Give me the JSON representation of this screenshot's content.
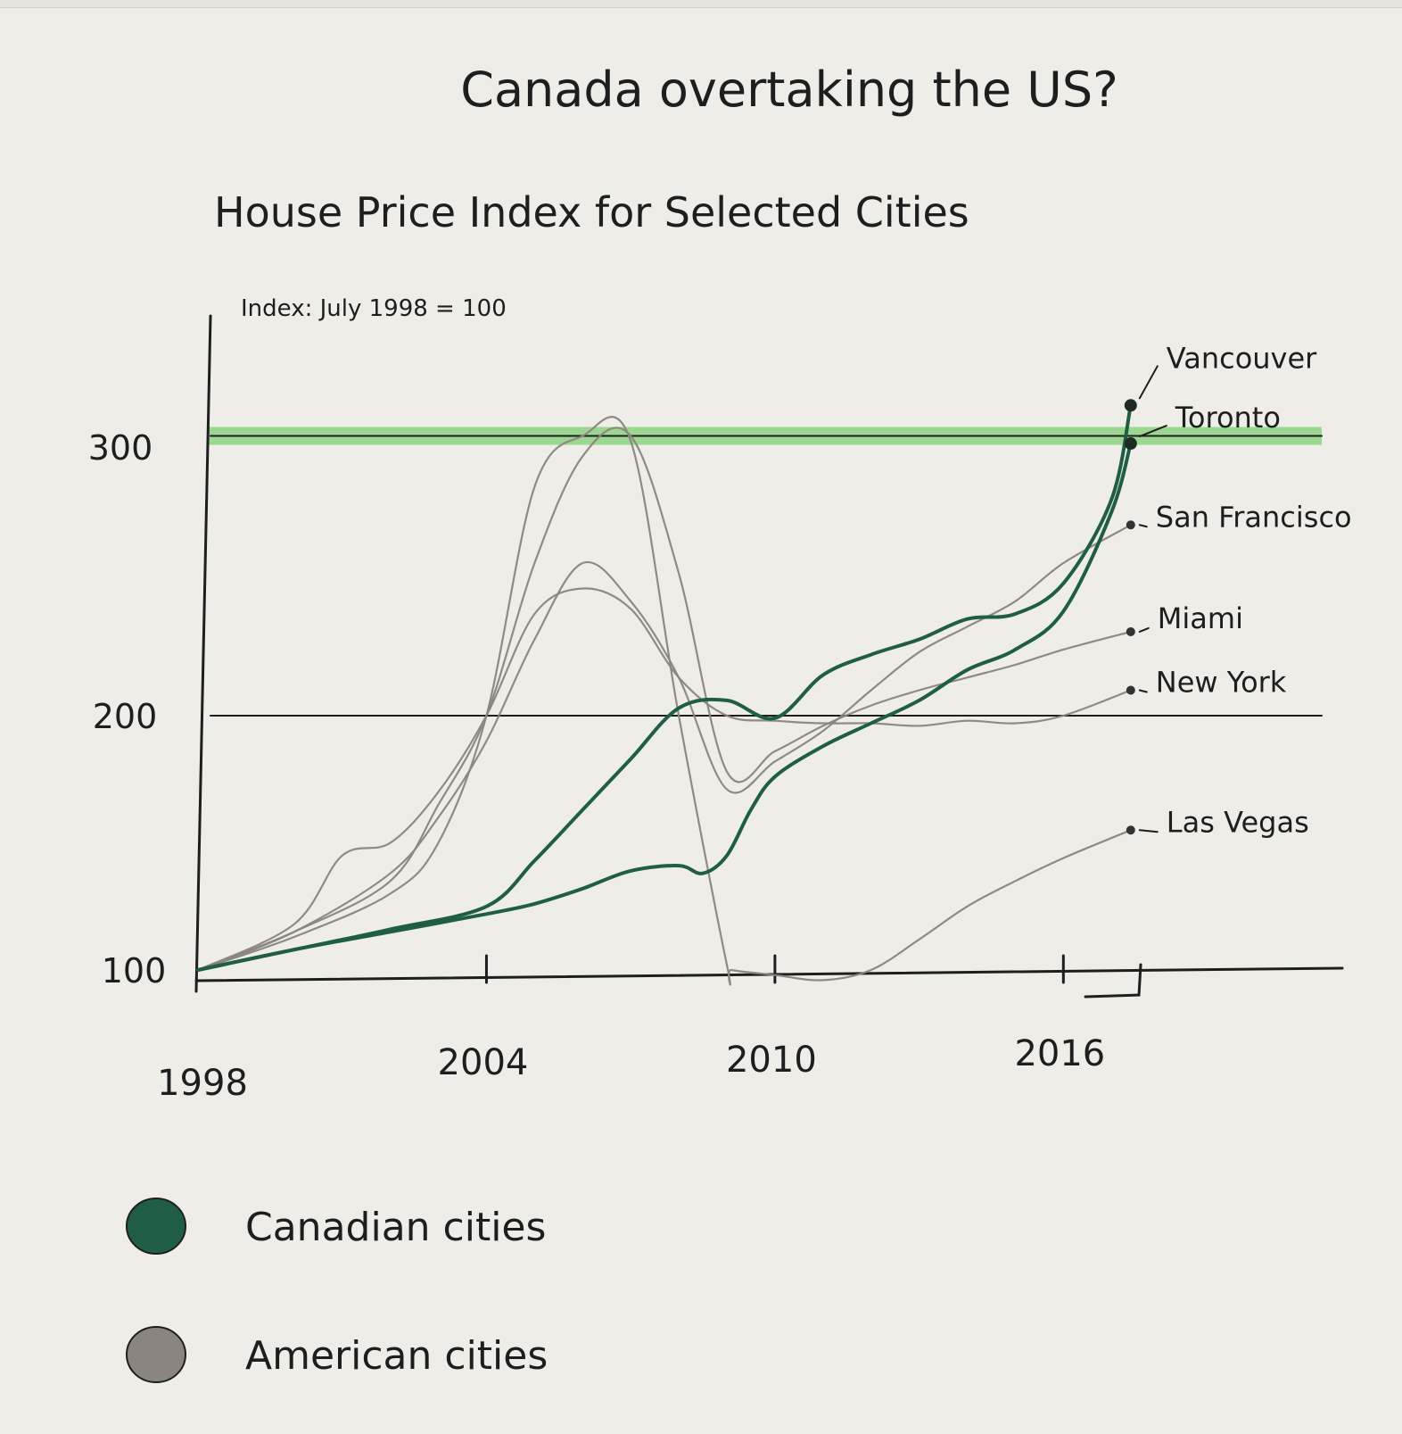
{
  "chart_data": {
    "type": "line",
    "title": "Canada overtaking the US?",
    "subtitle": "House Price Index for Selected Cities",
    "ylabel": "Index: July 1998 = 100",
    "xlabel": "",
    "xlim": [
      1998,
      2021.8
    ],
    "ylim": [
      100,
      330
    ],
    "x_ticks": [
      {
        "value": 1998,
        "label": "1998"
      },
      {
        "value": 2004,
        "label": "2004"
      },
      {
        "value": 2010,
        "label": "2010"
      },
      {
        "value": 2016,
        "label": "2016"
      }
    ],
    "y_ticks": [
      {
        "value": 100,
        "label": "100"
      },
      {
        "value": 200,
        "label": "200"
      },
      {
        "value": 300,
        "label": "300"
      }
    ],
    "reference_lines": [
      200,
      310
    ],
    "highlight_band": {
      "y": 310,
      "color": "#7fcf73"
    },
    "grid": false,
    "legend_position": "bottom-left",
    "groups": [
      {
        "name": "Canadian cities",
        "color": "#1f5e45"
      },
      {
        "name": "American cities",
        "color": "#8a8580"
      }
    ],
    "series": [
      {
        "name": "Vancouver",
        "group": "Canadian cities",
        "x": [
          1998,
          2000,
          2002,
          2004,
          2005,
          2006,
          2007,
          2008,
          2009,
          2010,
          2011,
          2012,
          2013,
          2014,
          2015,
          2016,
          2017,
          2017.4
        ],
        "y": [
          100,
          108,
          116,
          125,
          143,
          163,
          183,
          203,
          206,
          199,
          216,
          224,
          230,
          238,
          240,
          252,
          285,
          322
        ]
      },
      {
        "name": "Toronto",
        "group": "Canadian cities",
        "x": [
          1998,
          2000,
          2002,
          2004,
          2005,
          2006,
          2007,
          2008,
          2008.5,
          2009,
          2009.5,
          2010,
          2011,
          2012,
          2013,
          2014,
          2015,
          2016,
          2017,
          2017.4
        ],
        "y": [
          100,
          108,
          115,
          122,
          126,
          132,
          139,
          141,
          138,
          145,
          163,
          176,
          188,
          197,
          206,
          218,
          226,
          241,
          280,
          307
        ]
      },
      {
        "name": "San Francisco",
        "group": "American cities",
        "x": [
          1998,
          2000,
          2002,
          2003,
          2004,
          2005,
          2006,
          2007,
          2008,
          2009,
          2010,
          2011,
          2012,
          2013,
          2014,
          2015,
          2016,
          2017.4
        ],
        "y": [
          100,
          115,
          138,
          160,
          190,
          230,
          260,
          245,
          215,
          171,
          182,
          194,
          210,
          225,
          235,
          245,
          260,
          275
        ]
      },
      {
        "name": "Miami",
        "group": "American cities",
        "x": [
          1998,
          2000,
          2002,
          2003,
          2004,
          2005,
          2006,
          2007,
          2008,
          2009,
          2010,
          2011,
          2012,
          2013,
          2014,
          2015,
          2016,
          2017.4
        ],
        "y": [
          100,
          115,
          135,
          165,
          200,
          260,
          302,
          310,
          256,
          178,
          186,
          196,
          204,
          210,
          215,
          220,
          226,
          233
        ]
      },
      {
        "name": "New York",
        "group": "American cities",
        "x": [
          1998,
          2000,
          2001,
          2002,
          2003,
          2004,
          2005,
          2006,
          2007,
          2008,
          2009,
          2010,
          2011,
          2012,
          2013,
          2014,
          2015,
          2016,
          2017.4
        ],
        "y": [
          100,
          118,
          145,
          150,
          170,
          200,
          240,
          250,
          242,
          215,
          200,
          198,
          197,
          197,
          196,
          198,
          197,
          200,
          210
        ]
      },
      {
        "name": "Las Vegas",
        "group": "American cities",
        "x": [
          1998,
          2000,
          2002,
          2003,
          2004,
          2005,
          2006,
          2007,
          2008,
          2009,
          2009.1,
          2010,
          2011,
          2012,
          2013,
          2014,
          2015,
          2016,
          2017.4
        ],
        "y": [
          100,
          113,
          130,
          150,
          200,
          290,
          310,
          308,
          200,
          102,
          100,
          98,
          96,
          100,
          112,
          125,
          135,
          144,
          155
        ]
      }
    ],
    "legend": [
      {
        "label": "Canadian cities",
        "color": "#1f5e45"
      },
      {
        "label": "American cities",
        "color": "#8a8580"
      }
    ]
  }
}
